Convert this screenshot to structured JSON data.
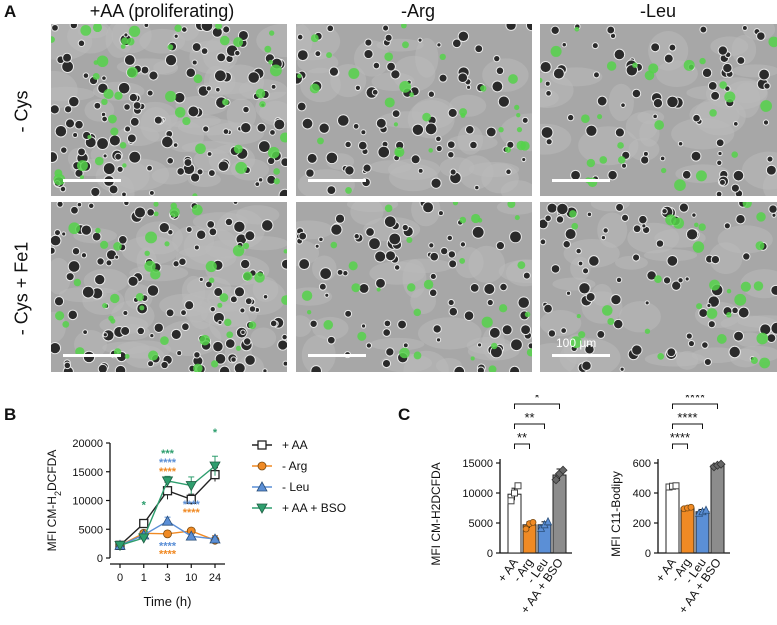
{
  "figure": {
    "panel_a": {
      "letter": "A",
      "columns": [
        "+AA (proliferating)",
        "-Arg",
        "-Leu"
      ],
      "rows": [
        "- Cys",
        "- Cys + Fe1"
      ],
      "scale_label": "100 μm",
      "fluor_color": "#55d24a",
      "bg_color": "#a7a7a7"
    },
    "panel_b": {
      "letter": "B"
    },
    "panel_c": {
      "letter": "C"
    }
  },
  "chart_data": [
    {
      "type": "line",
      "xlabel": "Time (h)",
      "ylabel_parts": [
        "MFI CM-H",
        "2",
        "DCFDA"
      ],
      "x": [
        "0",
        "1",
        "3",
        "10",
        "24"
      ],
      "ylim": [
        0,
        20000
      ],
      "yticks": [
        "0",
        "5000",
        "10000",
        "15000",
        "20000"
      ],
      "series": [
        {
          "name": "+ AA",
          "color": "#222222",
          "marker": "square",
          "values": [
            2200,
            6000,
            11700,
            10200,
            14500
          ],
          "err": [
            300,
            400,
            1500,
            900,
            1200
          ]
        },
        {
          "name": "- Arg",
          "color": "#f08a24",
          "marker": "circle",
          "values": [
            2200,
            4300,
            4200,
            4700,
            3100
          ],
          "err": [
            300,
            300,
            300,
            500,
            800
          ]
        },
        {
          "name": "- Leu",
          "color": "#5b8fd6",
          "marker": "triangle",
          "values": [
            2200,
            4000,
            6400,
            3800,
            3300
          ],
          "err": [
            300,
            300,
            700,
            400,
            500
          ]
        },
        {
          "name": "+ AA + BSO",
          "color": "#2e9e6e",
          "marker": "triangle-down",
          "values": [
            2200,
            3500,
            13400,
            12600,
            16000
          ],
          "err": [
            300,
            300,
            800,
            1500,
            1700
          ]
        }
      ],
      "annotations": [
        {
          "text": "*",
          "x": "1",
          "y": 8600,
          "color": "#2e9e6e"
        },
        {
          "text": "***",
          "x": "3",
          "y": 17600,
          "color": "#2e9e6e"
        },
        {
          "text": "****",
          "x": "3",
          "y": 16000,
          "color": "#5b8fd6"
        },
        {
          "text": "****",
          "x": "3",
          "y": 14400,
          "color": "#f08a24"
        },
        {
          "text": "*",
          "x": "24",
          "y": 21200,
          "color": "#2e9e6e"
        },
        {
          "text": "****",
          "x": "10",
          "y": 8700,
          "color": "#5b8fd6"
        },
        {
          "text": "****",
          "x": "10",
          "y": 7300,
          "color": "#f08a24"
        },
        {
          "text": "****",
          "x": "3",
          "y": 1500,
          "color": "#5b8fd6"
        },
        {
          "text": "****",
          "x": "3",
          "y": 100,
          "color": "#f08a24"
        }
      ]
    },
    {
      "type": "bar",
      "ylabel": "MFI CM-H2DCFDA",
      "categories": [
        "+ AA",
        "- Arg",
        "- Leu",
        "+ AA + BSO"
      ],
      "values": [
        9800,
        4700,
        4700,
        13000
      ],
      "err": [
        1000,
        500,
        500,
        1000
      ],
      "points": [
        [
          8700,
          10000,
          11200
        ],
        [
          4000,
          4900,
          5100
        ],
        [
          4100,
          4700,
          5200
        ],
        [
          12200,
          13200,
          13800
        ]
      ],
      "colors": [
        "#ffffff",
        "#f08a24",
        "#5b8fd6",
        "#8c8c8c"
      ],
      "ylim": [
        0,
        15000
      ],
      "yticks": [
        "0",
        "5000",
        "10000",
        "15000"
      ],
      "significance": [
        {
          "from": 0,
          "to": 1,
          "text": "**"
        },
        {
          "from": 0,
          "to": 2,
          "text": "**"
        },
        {
          "from": 0,
          "to": 3,
          "text": "*"
        }
      ]
    },
    {
      "type": "bar",
      "ylabel": "MFI C11-Bodipy",
      "categories": [
        "+ AA",
        "- Arg",
        "- Leu",
        "+ AA + BSO"
      ],
      "values": [
        440,
        300,
        275,
        585
      ],
      "err": [
        10,
        10,
        15,
        12
      ],
      "points": [
        [
          440,
          445,
          448
        ],
        [
          295,
          300,
          305
        ],
        [
          265,
          275,
          285
        ],
        [
          575,
          585,
          592
        ]
      ],
      "colors": [
        "#ffffff",
        "#f08a24",
        "#5b8fd6",
        "#8c8c8c"
      ],
      "ylim": [
        0,
        600
      ],
      "yticks": [
        "0",
        "200",
        "400",
        "600"
      ],
      "significance": [
        {
          "from": 0,
          "to": 1,
          "text": "****"
        },
        {
          "from": 0,
          "to": 2,
          "text": "****"
        },
        {
          "from": 0,
          "to": 3,
          "text": "****"
        }
      ]
    }
  ]
}
